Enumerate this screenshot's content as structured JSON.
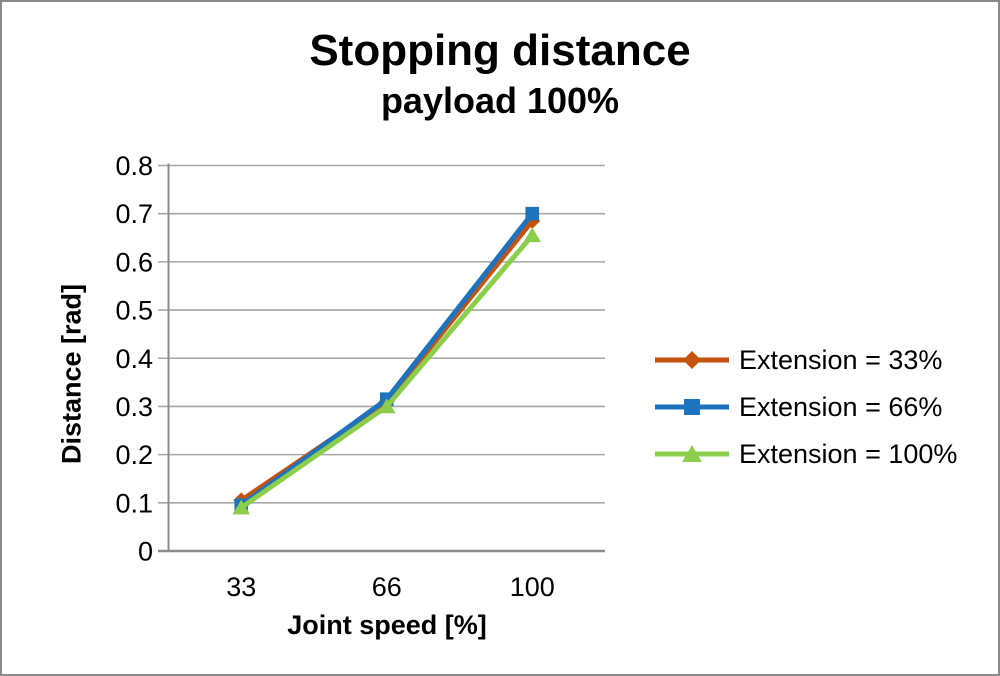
{
  "chart_data": {
    "type": "line",
    "title": "Stopping distance",
    "subtitle": "payload 100%",
    "xlabel": "Joint speed [%]",
    "ylabel": "Distance [rad]",
    "categories": [
      "33",
      "66",
      "100"
    ],
    "y_ticks": [
      "0.8",
      "0.7",
      "0.6",
      "0.5",
      "0.4",
      "0.3",
      "0.2",
      "0.1",
      "0"
    ],
    "ylim": [
      0,
      0.8
    ],
    "grid": true,
    "legend_position": "right",
    "series": [
      {
        "name": "Extension = 33%",
        "marker": "diamond",
        "color": "#C5530D",
        "values": [
          0.105,
          0.31,
          0.685
        ]
      },
      {
        "name": "Extension = 66%",
        "marker": "square",
        "color": "#1E73BE",
        "values": [
          0.095,
          0.315,
          0.7
        ]
      },
      {
        "name": "Extension = 100%",
        "marker": "triangle",
        "color": "#8CCE4B",
        "values": [
          0.09,
          0.3,
          0.655
        ]
      }
    ]
  },
  "colors": {
    "grid": "#A6A6A6",
    "axis": "#8C8C8C",
    "frame_border": "#898989",
    "text": "#000000",
    "background": "#FFFFFF"
  }
}
